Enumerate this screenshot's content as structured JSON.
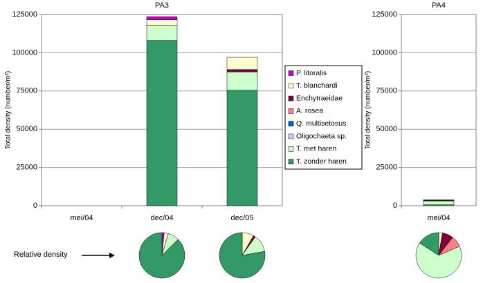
{
  "chart_data": {
    "type": "stacked-bar",
    "ylabel": "Total density (number/m²)",
    "annotation": "Relative density",
    "series": [
      {
        "name": "P. litoralis",
        "color": "#cc00cc"
      },
      {
        "name": "T. blanchardi",
        "color": "#ffffcc"
      },
      {
        "name": "Enchytraeidae",
        "color": "#800040"
      },
      {
        "name": "A. rosea",
        "color": "#ff8080"
      },
      {
        "name": "Q. multisetosus",
        "color": "#0066cc"
      },
      {
        "name": "Oligochaeta sp.",
        "color": "#ccccff"
      },
      {
        "name": "T. met haren",
        "color": "#ccffcc"
      },
      {
        "name": "T. zonder haren",
        "color": "#339966"
      }
    ],
    "panels": [
      {
        "title": "PA3",
        "categories": [
          "mei/04",
          "dec/04",
          "dec/05"
        ],
        "ylim": [
          0,
          125000
        ],
        "yticks": [
          0,
          25000,
          50000,
          75000,
          100000,
          125000
        ],
        "values": [
          [
            0,
            2000,
            0
          ],
          [
            0,
            3600,
            8000
          ],
          [
            0,
            0,
            1500
          ],
          [
            0,
            0,
            0
          ],
          [
            0,
            0,
            0
          ],
          [
            0,
            0,
            0
          ],
          [
            0,
            10000,
            12000
          ],
          [
            0,
            108000,
            75500
          ]
        ]
      },
      {
        "title": "PA4",
        "categories": [
          "mei/04"
        ],
        "ylim": [
          0,
          125000
        ],
        "yticks": [
          0,
          25000,
          50000,
          75000,
          100000,
          125000
        ],
        "values": [
          [
            0
          ],
          [
            100
          ],
          [
            300
          ],
          [
            300
          ],
          [
            0
          ],
          [
            0
          ],
          [
            2500
          ],
          [
            600
          ]
        ]
      }
    ]
  }
}
